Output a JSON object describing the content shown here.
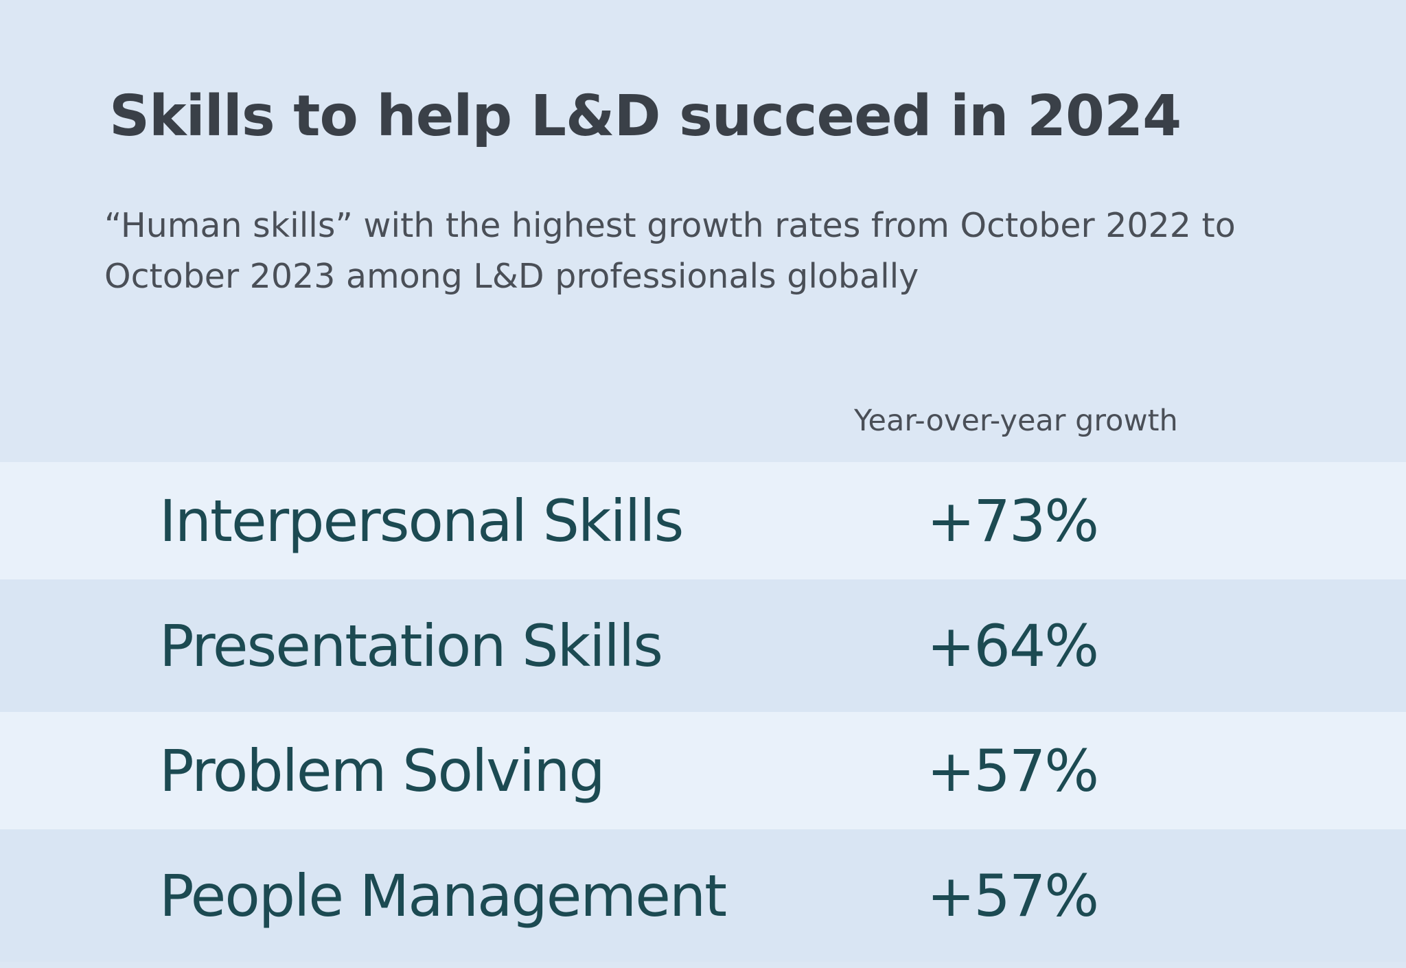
{
  "chart_data": {
    "type": "table",
    "title": "Skills to help L&D succeed in 2024",
    "subtitle": "“Human skills” with the highest growth rates from October 2022 to October 2023 among L&D professionals globally",
    "columns": [
      "",
      "Year-over-year growth"
    ],
    "rows": [
      {
        "skill": "Interpersonal Skills",
        "growth": "+73%",
        "value": 73
      },
      {
        "skill": "Presentation Skills",
        "growth": "+64%",
        "value": 64
      },
      {
        "skill": "Problem Solving",
        "growth": "+57%",
        "value": 57
      },
      {
        "skill": "People Management",
        "growth": "+57%",
        "value": 57
      }
    ]
  },
  "colors": {
    "background": "#dce7f4",
    "row_light": "#e9f1fa",
    "row_dark": "#d9e5f3",
    "title_text": "#3a4048",
    "value_text": "#1c4a52"
  }
}
